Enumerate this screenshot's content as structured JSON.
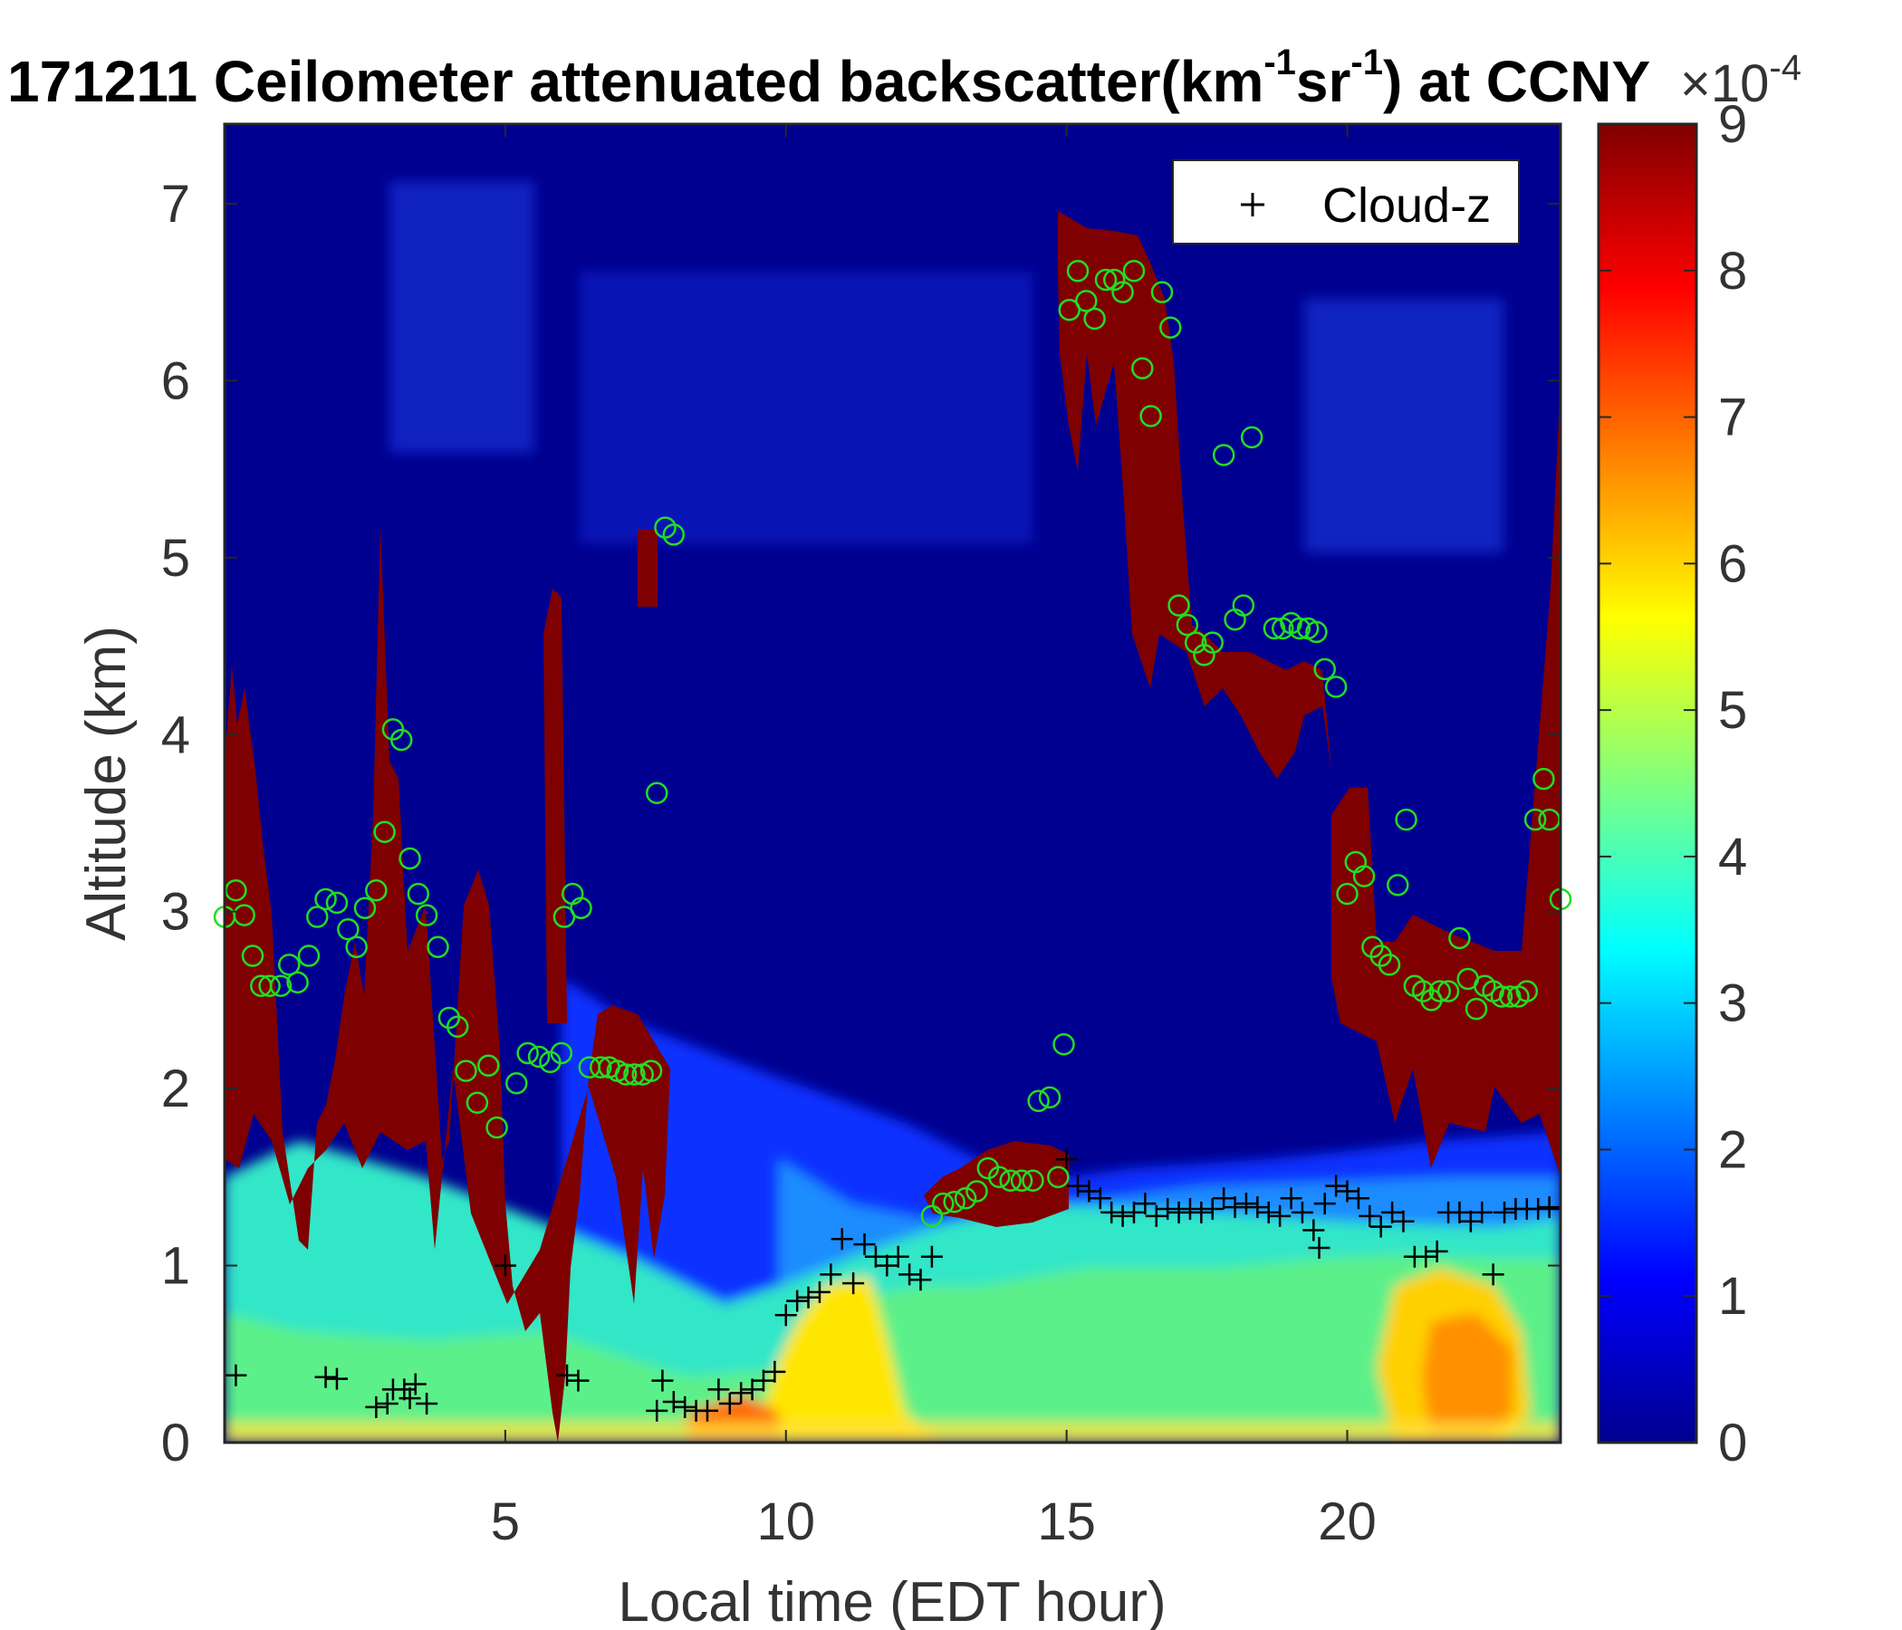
{
  "chart_data": {
    "type": "heatmap",
    "title": {
      "prefix": "171211 Ceilometer attenuated backscatter(km",
      "sup1": "-1",
      "mid": "sr",
      "sup2": "-1",
      "suffix": ") at CCNY"
    },
    "xlabel": "Local time (EDT hour)",
    "ylabel": "Altitude (km)",
    "xlim": [
      0,
      23.8
    ],
    "ylim": [
      0,
      7.45
    ],
    "xticks": [
      5,
      10,
      15,
      20
    ],
    "yticks": [
      0,
      1,
      2,
      3,
      4,
      5,
      6,
      7
    ],
    "colorbar": {
      "min": 0,
      "max": 9,
      "ticks": [
        0,
        1,
        2,
        3,
        4,
        5,
        6,
        7,
        8,
        9
      ],
      "exponent_label": "×10",
      "exponent_power": "-4",
      "colormap": "jet"
    },
    "legend": {
      "position": "top-right",
      "entries": [
        {
          "marker": "+",
          "label": "Cloud-z"
        }
      ]
    },
    "colors": {
      "cloud_marker": "#000000",
      "green_marker": "#22dd22",
      "background": "#000080"
    },
    "cloud_z": [
      [
        0.2,
        0.38
      ],
      [
        1.8,
        0.37
      ],
      [
        2.0,
        0.36
      ],
      [
        2.7,
        0.2
      ],
      [
        2.9,
        0.22
      ],
      [
        3.0,
        0.3
      ],
      [
        3.2,
        0.3
      ],
      [
        3.3,
        0.25
      ],
      [
        3.4,
        0.33
      ],
      [
        3.6,
        0.22
      ],
      [
        5.0,
        1.0
      ],
      [
        6.1,
        0.38
      ],
      [
        6.3,
        0.35
      ],
      [
        7.7,
        0.18
      ],
      [
        7.8,
        0.35
      ],
      [
        8.0,
        0.23
      ],
      [
        8.2,
        0.2
      ],
      [
        8.4,
        0.18
      ],
      [
        8.6,
        0.18
      ],
      [
        8.8,
        0.3
      ],
      [
        9.0,
        0.22
      ],
      [
        9.2,
        0.28
      ],
      [
        9.4,
        0.3
      ],
      [
        9.6,
        0.35
      ],
      [
        9.8,
        0.4
      ],
      [
        10.0,
        0.72
      ],
      [
        10.2,
        0.8
      ],
      [
        10.4,
        0.82
      ],
      [
        10.6,
        0.85
      ],
      [
        10.8,
        0.95
      ],
      [
        11.0,
        1.15
      ],
      [
        11.2,
        0.9
      ],
      [
        11.4,
        1.12
      ],
      [
        11.6,
        1.05
      ],
      [
        11.8,
        1.0
      ],
      [
        12.0,
        1.05
      ],
      [
        12.2,
        0.95
      ],
      [
        12.4,
        0.92
      ],
      [
        12.6,
        1.05
      ],
      [
        15.0,
        1.6
      ],
      [
        15.2,
        1.45
      ],
      [
        15.4,
        1.42
      ],
      [
        15.6,
        1.38
      ],
      [
        15.8,
        1.3
      ],
      [
        16.0,
        1.28
      ],
      [
        16.2,
        1.3
      ],
      [
        16.4,
        1.35
      ],
      [
        16.6,
        1.28
      ],
      [
        16.8,
        1.32
      ],
      [
        17.0,
        1.3
      ],
      [
        17.2,
        1.32
      ],
      [
        17.4,
        1.3
      ],
      [
        17.6,
        1.32
      ],
      [
        17.8,
        1.38
      ],
      [
        18.0,
        1.33
      ],
      [
        18.2,
        1.35
      ],
      [
        18.4,
        1.33
      ],
      [
        18.6,
        1.3
      ],
      [
        18.8,
        1.28
      ],
      [
        19.0,
        1.38
      ],
      [
        19.2,
        1.3
      ],
      [
        19.4,
        1.2
      ],
      [
        19.5,
        1.1
      ],
      [
        19.6,
        1.35
      ],
      [
        19.8,
        1.45
      ],
      [
        20.0,
        1.42
      ],
      [
        20.2,
        1.38
      ],
      [
        20.4,
        1.28
      ],
      [
        20.6,
        1.22
      ],
      [
        20.8,
        1.3
      ],
      [
        21.0,
        1.25
      ],
      [
        21.2,
        1.05
      ],
      [
        21.4,
        1.05
      ],
      [
        21.6,
        1.08
      ],
      [
        21.8,
        1.3
      ],
      [
        22.0,
        1.3
      ],
      [
        22.2,
        1.25
      ],
      [
        22.4,
        1.3
      ],
      [
        22.6,
        0.95
      ],
      [
        22.8,
        1.3
      ],
      [
        23.0,
        1.32
      ],
      [
        23.2,
        1.32
      ],
      [
        23.4,
        1.32
      ],
      [
        23.6,
        1.33
      ],
      [
        23.8,
        1.32
      ]
    ],
    "green_points": [
      [
        0.0,
        2.97
      ],
      [
        0.2,
        3.12
      ],
      [
        0.35,
        2.98
      ],
      [
        0.5,
        2.75
      ],
      [
        0.65,
        2.58
      ],
      [
        0.8,
        2.58
      ],
      [
        1.0,
        2.58
      ],
      [
        1.15,
        2.7
      ],
      [
        1.3,
        2.6
      ],
      [
        1.5,
        2.75
      ],
      [
        1.65,
        2.97
      ],
      [
        1.8,
        3.07
      ],
      [
        2.0,
        3.05
      ],
      [
        2.2,
        2.9
      ],
      [
        2.35,
        2.8
      ],
      [
        2.5,
        3.02
      ],
      [
        2.7,
        3.12
      ],
      [
        2.85,
        3.45
      ],
      [
        3.0,
        4.03
      ],
      [
        3.15,
        3.97
      ],
      [
        3.3,
        3.3
      ],
      [
        3.45,
        3.1
      ],
      [
        3.6,
        2.98
      ],
      [
        3.8,
        2.8
      ],
      [
        4.0,
        2.4
      ],
      [
        4.15,
        2.35
      ],
      [
        4.3,
        2.1
      ],
      [
        4.5,
        1.92
      ],
      [
        4.7,
        2.13
      ],
      [
        4.85,
        1.78
      ],
      [
        5.2,
        2.03
      ],
      [
        5.4,
        2.2
      ],
      [
        5.6,
        2.18
      ],
      [
        5.8,
        2.15
      ],
      [
        6.0,
        2.2
      ],
      [
        6.05,
        2.97
      ],
      [
        6.2,
        3.1
      ],
      [
        6.35,
        3.02
      ],
      [
        6.5,
        2.12
      ],
      [
        6.7,
        2.12
      ],
      [
        6.85,
        2.12
      ],
      [
        7.0,
        2.1
      ],
      [
        7.15,
        2.08
      ],
      [
        7.3,
        2.08
      ],
      [
        7.45,
        2.08
      ],
      [
        7.6,
        2.1
      ],
      [
        7.7,
        3.67
      ],
      [
        7.85,
        5.17
      ],
      [
        8.0,
        5.13
      ],
      [
        12.6,
        1.28
      ],
      [
        12.8,
        1.35
      ],
      [
        13.0,
        1.36
      ],
      [
        13.2,
        1.38
      ],
      [
        13.4,
        1.42
      ],
      [
        13.6,
        1.55
      ],
      [
        13.8,
        1.5
      ],
      [
        14.0,
        1.48
      ],
      [
        14.2,
        1.48
      ],
      [
        14.4,
        1.48
      ],
      [
        14.5,
        1.93
      ],
      [
        14.7,
        1.95
      ],
      [
        14.85,
        1.5
      ],
      [
        14.95,
        2.25
      ],
      [
        15.05,
        6.4
      ],
      [
        15.2,
        6.62
      ],
      [
        15.35,
        6.45
      ],
      [
        15.5,
        6.35
      ],
      [
        15.7,
        6.57
      ],
      [
        15.85,
        6.57
      ],
      [
        16.0,
        6.5
      ],
      [
        16.2,
        6.62
      ],
      [
        16.35,
        6.07
      ],
      [
        16.5,
        5.8
      ],
      [
        16.7,
        6.5
      ],
      [
        16.85,
        6.3
      ],
      [
        17.0,
        4.73
      ],
      [
        17.15,
        4.62
      ],
      [
        17.3,
        4.52
      ],
      [
        17.45,
        4.45
      ],
      [
        17.6,
        4.52
      ],
      [
        17.8,
        5.58
      ],
      [
        18.0,
        4.65
      ],
      [
        18.15,
        4.73
      ],
      [
        18.3,
        5.68
      ],
      [
        18.7,
        4.6
      ],
      [
        18.85,
        4.6
      ],
      [
        19.0,
        4.63
      ],
      [
        19.15,
        4.6
      ],
      [
        19.3,
        4.6
      ],
      [
        19.45,
        4.58
      ],
      [
        19.6,
        4.37
      ],
      [
        19.8,
        4.27
      ],
      [
        20.0,
        3.1
      ],
      [
        20.15,
        3.28
      ],
      [
        20.3,
        3.2
      ],
      [
        20.45,
        2.8
      ],
      [
        20.6,
        2.75
      ],
      [
        20.75,
        2.7
      ],
      [
        20.9,
        3.15
      ],
      [
        21.05,
        3.52
      ],
      [
        21.2,
        2.58
      ],
      [
        21.35,
        2.55
      ],
      [
        21.5,
        2.5
      ],
      [
        21.65,
        2.55
      ],
      [
        21.8,
        2.55
      ],
      [
        22.0,
        2.85
      ],
      [
        22.15,
        2.62
      ],
      [
        22.3,
        2.45
      ],
      [
        22.45,
        2.58
      ],
      [
        22.6,
        2.55
      ],
      [
        22.75,
        2.52
      ],
      [
        22.9,
        2.52
      ],
      [
        23.05,
        2.52
      ],
      [
        23.2,
        2.55
      ],
      [
        23.35,
        3.52
      ],
      [
        23.5,
        3.75
      ],
      [
        23.6,
        3.52
      ],
      [
        23.8,
        3.07
      ]
    ]
  }
}
